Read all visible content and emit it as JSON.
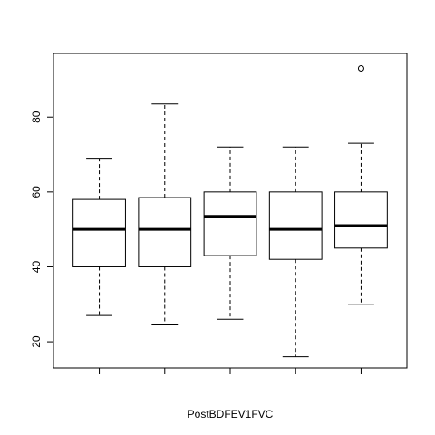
{
  "chart_data": {
    "type": "boxplot",
    "xlabel": "PostBDFEV1FVC",
    "ylim": [
      13,
      97
    ],
    "yticks": [
      20,
      40,
      60,
      80
    ],
    "grid": false,
    "series": [
      {
        "values": {
          "min": 27,
          "q1": 40,
          "median": 50,
          "q3": 58,
          "max": 69,
          "outliers": []
        }
      },
      {
        "values": {
          "min": 24.5,
          "q1": 40,
          "median": 50,
          "q3": 58.5,
          "max": 83.5,
          "outliers": []
        }
      },
      {
        "values": {
          "min": 26,
          "q1": 43,
          "median": 53.5,
          "q3": 60,
          "max": 72,
          "outliers": []
        }
      },
      {
        "values": {
          "min": 16,
          "q1": 42,
          "median": 50,
          "q3": 60,
          "max": 72,
          "outliers": []
        }
      },
      {
        "values": {
          "min": 30,
          "q1": 45,
          "median": 51,
          "q3": 60,
          "max": 73,
          "outliers": [
            93
          ]
        }
      }
    ]
  }
}
